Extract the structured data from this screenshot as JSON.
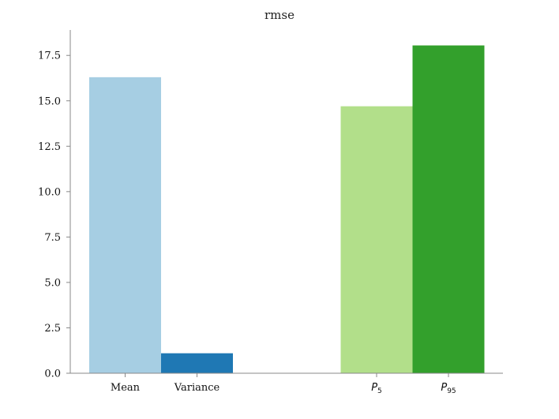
{
  "chart_data": {
    "type": "bar",
    "title": "rmse",
    "xlabel": "",
    "ylabel": "",
    "ylim": [
      0,
      18.9
    ],
    "yticks": [
      0.0,
      2.5,
      5.0,
      7.5,
      10.0,
      12.5,
      15.0,
      17.5
    ],
    "ytick_labels": [
      "0.0",
      "2.5",
      "5.0",
      "7.5",
      "10.0",
      "12.5",
      "15.0",
      "17.5"
    ],
    "grid": false,
    "legend": "none",
    "bars": [
      {
        "label": "Mean",
        "label_sub": "",
        "value": 16.3,
        "color": "#a6cee3",
        "italic": false,
        "slot": 0.5
      },
      {
        "label": "Variance",
        "label_sub": "",
        "value": 1.1,
        "color": "#1f78b4",
        "italic": false,
        "slot": 1.5
      },
      {
        "label": "P",
        "label_sub": "5",
        "value": 14.7,
        "color": "#b2df8a",
        "italic": true,
        "slot": 4.0
      },
      {
        "label": "P",
        "label_sub": "95",
        "value": 18.05,
        "color": "#33a02c",
        "italic": true,
        "slot": 5.0
      }
    ],
    "x_slots": 6,
    "axis_color": "#888888"
  }
}
